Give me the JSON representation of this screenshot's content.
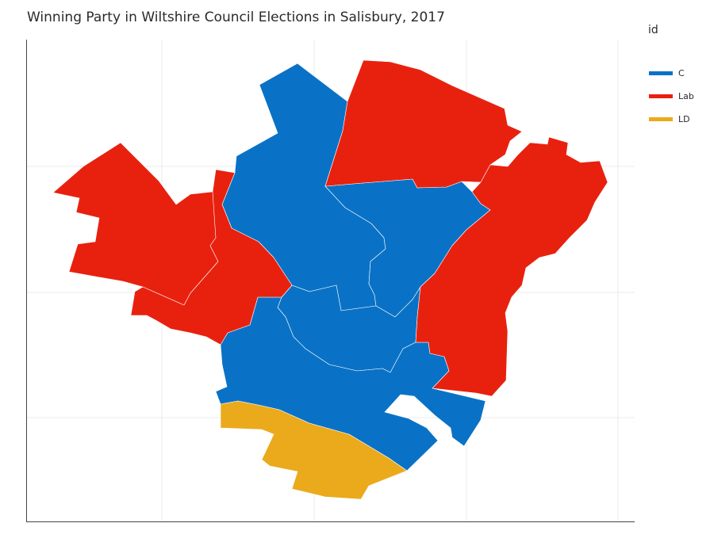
{
  "chart_data": {
    "type": "choropleth",
    "title": "Winning Party in Wiltshire Council Elections in Salisbury, 2017",
    "legend": {
      "title": "id",
      "placement": "right",
      "items": [
        {
          "label": "C",
          "color": "#0a72c6"
        },
        {
          "label": "Lab",
          "color": "#e8210f"
        },
        {
          "label": "LD",
          "color": "#eaaa1c"
        }
      ]
    },
    "grid": true,
    "divisions": [
      {
        "party": "C"
      },
      {
        "party": "C"
      },
      {
        "party": "C"
      },
      {
        "party": "C"
      },
      {
        "party": "Lab"
      },
      {
        "party": "Lab"
      },
      {
        "party": "Lab"
      },
      {
        "party": "Lab"
      },
      {
        "party": "LD"
      }
    ]
  }
}
